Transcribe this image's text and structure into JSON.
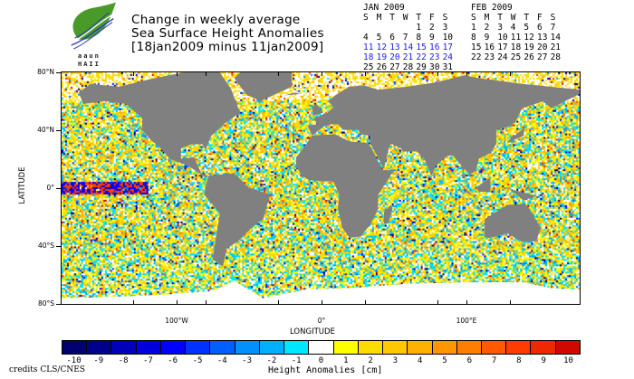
{
  "title": {
    "line1": "Change in weekly average",
    "line2": "Sea Surface Height Anomalies",
    "line3": "[18jan2009 minus 11jan2009]"
  },
  "logo": {
    "text1": "aaun",
    "text2": "HAII"
  },
  "calendars": [
    {
      "header": "JAN 2009",
      "days": [
        "S",
        "M",
        "T",
        "W",
        "T",
        "F",
        "S"
      ],
      "weeks": [
        [
          "",
          "",
          "",
          "",
          "1",
          "2",
          "3"
        ],
        [
          "4",
          "5",
          "6",
          "7",
          "8",
          "9",
          "10"
        ],
        [
          "11",
          "12",
          "13",
          "14",
          "15",
          "16",
          "17"
        ],
        [
          "18",
          "19",
          "20",
          "21",
          "22",
          "23",
          "24"
        ],
        [
          "25",
          "26",
          "27",
          "28",
          "29",
          "30",
          "31"
        ]
      ],
      "highlighted_weeks": [
        2,
        3
      ]
    },
    {
      "header": "FEB 2009",
      "days": [
        "S",
        "M",
        "T",
        "W",
        "T",
        "F",
        "S"
      ],
      "weeks": [
        [
          "1",
          "2",
          "3",
          "4",
          "5",
          "6",
          "7"
        ],
        [
          "8",
          "9",
          "10",
          "11",
          "12",
          "13",
          "14"
        ],
        [
          "15",
          "16",
          "17",
          "18",
          "19",
          "20",
          "21"
        ],
        [
          "22",
          "23",
          "24",
          "25",
          "26",
          "27",
          "28"
        ]
      ],
      "highlighted_weeks": []
    }
  ],
  "map": {
    "lat_labels": [
      "80°N",
      "40°N",
      "0°",
      "40°S",
      "80°S"
    ],
    "lon_labels": [
      "100°W",
      "0°",
      "100°E"
    ],
    "xlabel": "LONGITUDE",
    "ylabel": "LATITUDE",
    "land_color": "#808080"
  },
  "colorbar": {
    "title": "Height Anomalies [cm]",
    "labels": [
      "-10",
      "-9",
      "-8",
      "-7",
      "-6",
      "-5",
      "-4",
      "-3",
      "-2",
      "-1",
      "0",
      "1",
      "2",
      "3",
      "4",
      "5",
      "6",
      "7",
      "8",
      "9",
      "10"
    ],
    "colors": [
      "#00006e",
      "#00008f",
      "#0000b8",
      "#0000dc",
      "#0000ff",
      "#0032ff",
      "#0060ff",
      "#0090ff",
      "#00b0ff",
      "#00e6ff",
      "#ffffff",
      "#ffff00",
      "#ffdc00",
      "#ffc800",
      "#ffb000",
      "#ff9600",
      "#ff7e00",
      "#ff5a00",
      "#ff3c00",
      "#f02800",
      "#d00800"
    ]
  },
  "credits": "credits CLS/CNES"
}
